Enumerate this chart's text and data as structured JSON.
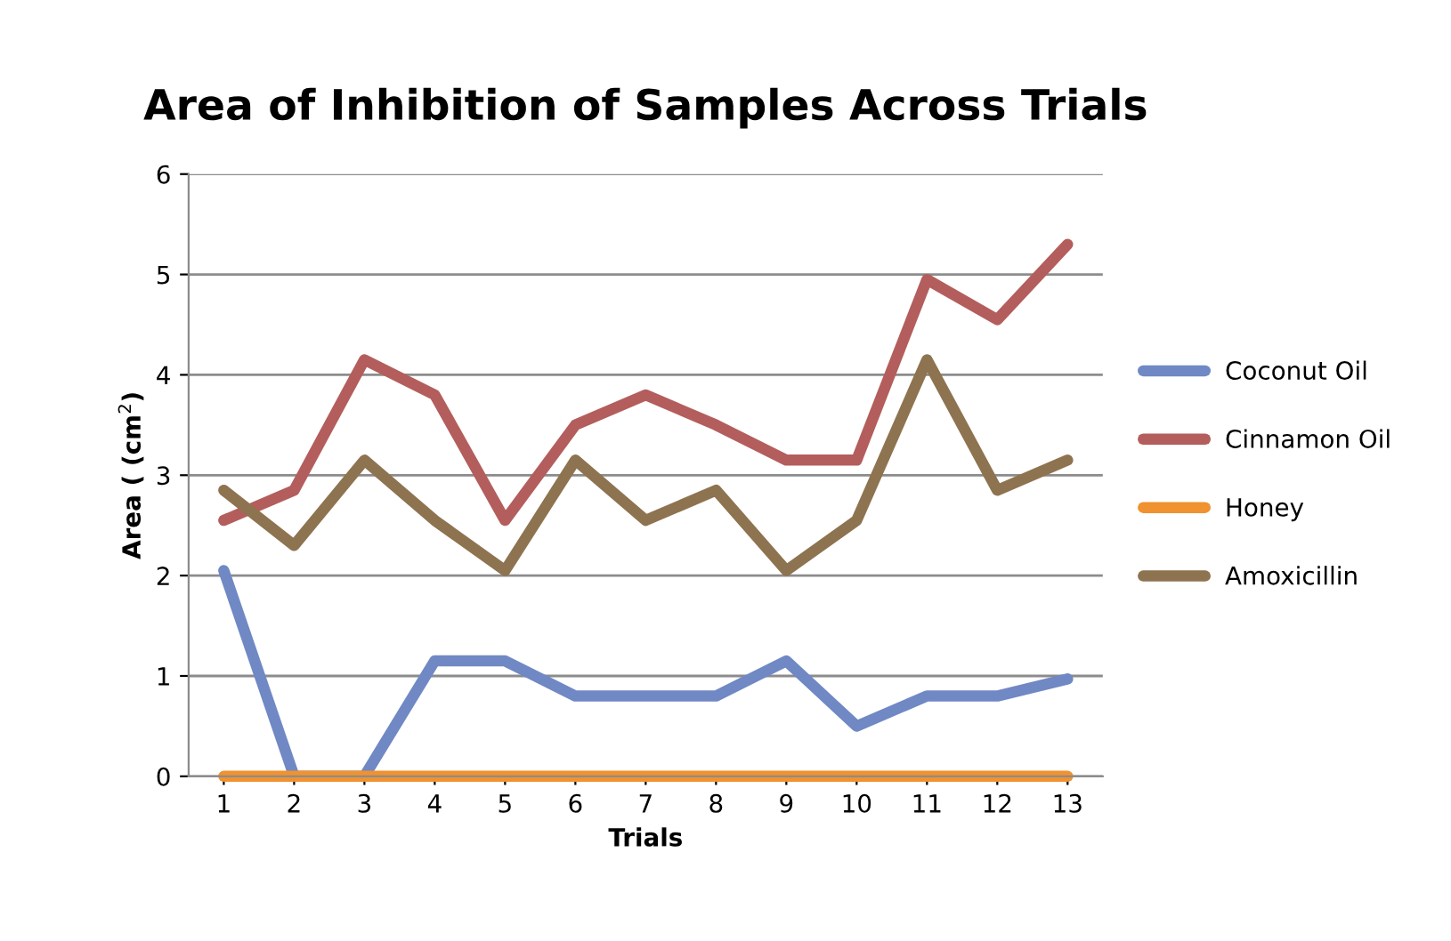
{
  "chart_data": {
    "type": "line",
    "title": "Area of Inhibition of Samples Across Trials",
    "xlabel": "Trials",
    "ylabel": "Area ( (cm$^{2}$)",
    "categories": [
      "1",
      "2",
      "3",
      "4",
      "5",
      "6",
      "7",
      "8",
      "9",
      "10",
      "11",
      "12",
      "13"
    ],
    "series": [
      {
        "name": "Coconut Oil",
        "color": "#7088c4",
        "values": [
          2.05,
          0,
          0,
          1.15,
          1.15,
          0.8,
          0.8,
          0.8,
          1.15,
          0.5,
          0.8,
          0.8,
          0.97
        ]
      },
      {
        "name": "Cinnamon Oil",
        "color": "#b35e5c",
        "values": [
          2.55,
          2.85,
          4.15,
          3.8,
          2.55,
          3.5,
          3.8,
          3.5,
          3.15,
          3.15,
          4.95,
          4.55,
          5.3
        ]
      },
      {
        "name": "Honey",
        "color": "#f0922f",
        "values": [
          0,
          0,
          0,
          0,
          0,
          0,
          0,
          0,
          0,
          0,
          0,
          0,
          0
        ]
      },
      {
        "name": "Amoxicillin",
        "color": "#8e7350",
        "values": [
          2.85,
          2.3,
          3.15,
          2.55,
          2.05,
          3.15,
          2.55,
          2.85,
          2.05,
          2.55,
          4.15,
          2.85,
          3.15
        ]
      }
    ],
    "ylim": [
      0,
      6
    ],
    "yticks": [
      0,
      1,
      2,
      3,
      4,
      5,
      6
    ],
    "grid": "y",
    "legend": "right",
    "marker": "none",
    "line_style": "solid"
  }
}
